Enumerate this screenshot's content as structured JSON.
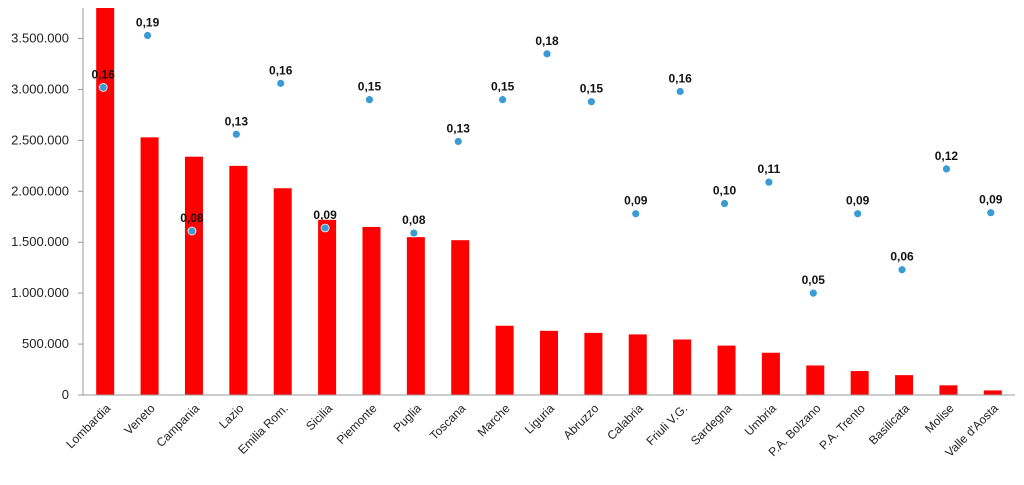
{
  "chart_data": {
    "type": "bar",
    "categories": [
      "Lombardia",
      "Veneto",
      "Campania",
      "Lazio",
      "Emilia Rom.",
      "Sicilia",
      "Piemonte",
      "Puglia",
      "Toscana",
      "Marche",
      "Liguria",
      "Abruzzo",
      "Calabria",
      "Friuli V.G.",
      "Sardegna",
      "Umbria",
      "P.A. Bolzano",
      "P.A. Trento",
      "Basilicata",
      "Molise",
      "Valle d'Aosta"
    ],
    "y_ticks": [
      "0",
      "500.000",
      "1.000.000",
      "1.500.000",
      "2.000.000",
      "2.500.000",
      "3.000.000",
      "3.500.000"
    ],
    "ylim": [
      0,
      3800000
    ],
    "grid": false,
    "legend": "none",
    "series": [
      {
        "type": "bar",
        "color": "#ff0000",
        "values": [
          3800000,
          2530000,
          2340000,
          2250000,
          2030000,
          1720000,
          1650000,
          1550000,
          1520000,
          680000,
          630000,
          610000,
          595000,
          545000,
          485000,
          415000,
          290000,
          235000,
          195000,
          95000,
          45000
        ]
      },
      {
        "type": "scatter",
        "color": "#3a9bd5",
        "values": [
          0.16,
          0.19,
          0.08,
          0.13,
          0.16,
          0.09,
          0.15,
          0.08,
          0.13,
          0.15,
          0.18,
          0.15,
          0.09,
          0.16,
          0.1,
          0.11,
          0.05,
          0.09,
          0.06,
          0.12,
          0.09
        ],
        "labels": [
          "0,16",
          "0,19",
          "0,08",
          "0,13",
          "0,16",
          "0,09",
          "0,15",
          "0,08",
          "0,13",
          "0,15",
          "0,18",
          "0,15",
          "0,09",
          "0,16",
          "0,10",
          "0,11",
          "0,05",
          "0,09",
          "0,06",
          "0,12",
          "0,09"
        ],
        "display_y": [
          3020000,
          3530000,
          1610000,
          2560000,
          3060000,
          1640000,
          2900000,
          1590000,
          2490000,
          2900000,
          3350000,
          2880000,
          1780000,
          2980000,
          1880000,
          2090000,
          1000000,
          1780000,
          1230000,
          2220000,
          1790000
        ]
      }
    ]
  }
}
